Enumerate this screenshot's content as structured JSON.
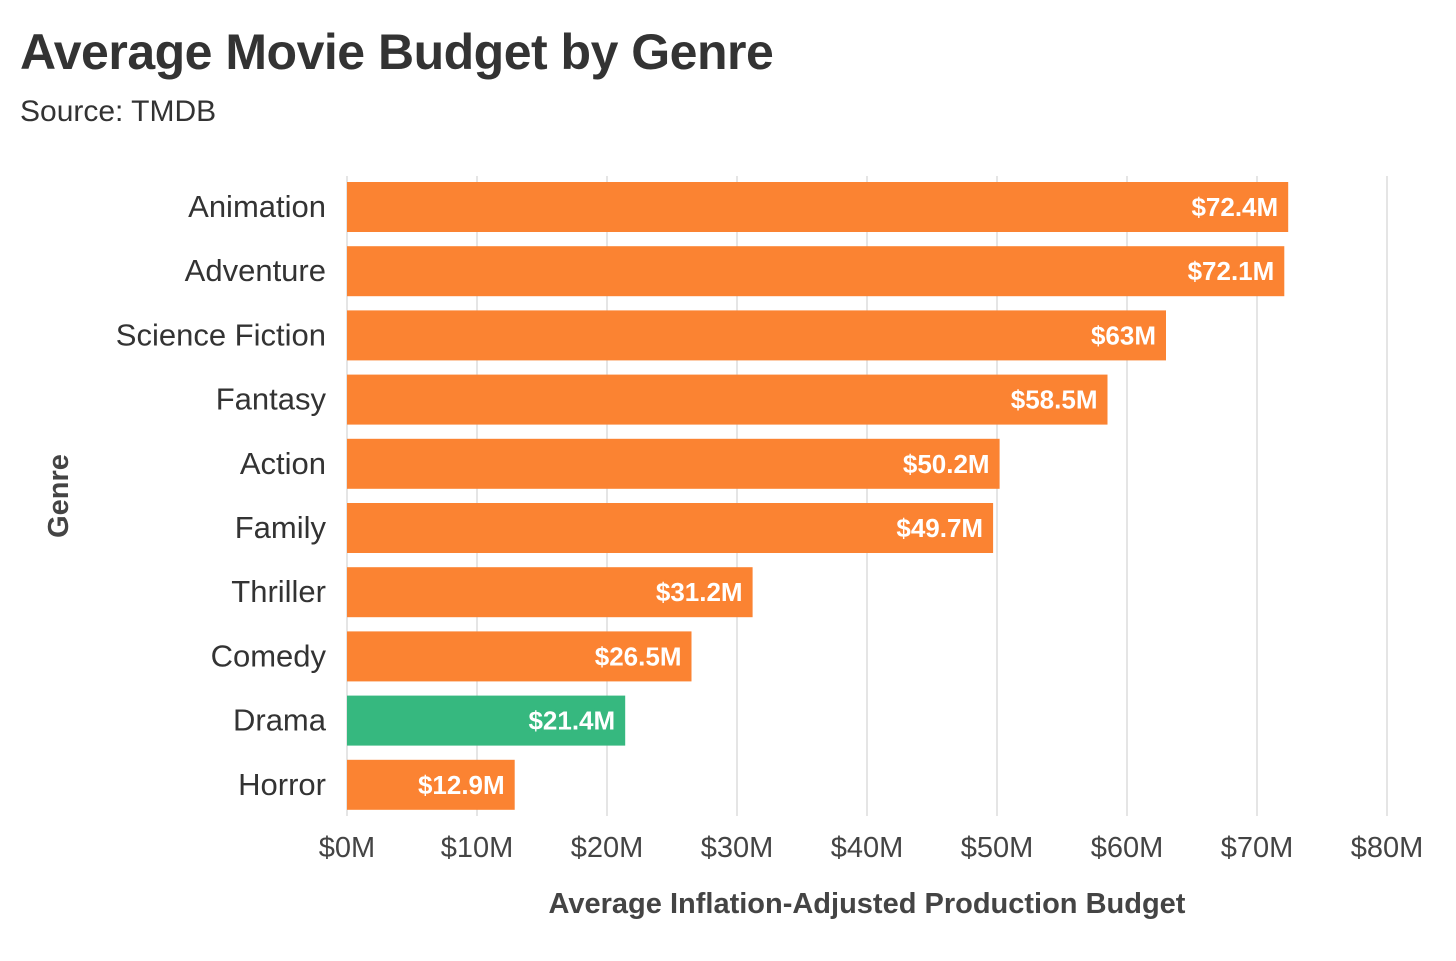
{
  "title": "Average Movie Budget by Genre",
  "subtitle": "Source: TMDB",
  "colors": {
    "bar": "#fb8332",
    "highlight": "#36b87f",
    "grid": "#e5e5e5",
    "text": "#333333",
    "label_text": "#ffffff"
  },
  "chart_data": {
    "type": "bar",
    "orientation": "horizontal",
    "xlabel": "Average Inflation-Adjusted Production Budget",
    "ylabel": "Genre",
    "xlim": [
      0,
      80
    ],
    "x_unit": "$M",
    "x_ticks": [
      0,
      10,
      20,
      30,
      40,
      50,
      60,
      70,
      80
    ],
    "x_tick_labels": [
      "$0M",
      "$10M",
      "$20M",
      "$30M",
      "$40M",
      "$50M",
      "$60M",
      "$70M",
      "$80M"
    ],
    "grid": "vertical",
    "legend": "none",
    "highlight_category": "Drama",
    "categories": [
      "Animation",
      "Adventure",
      "Science Fiction",
      "Fantasy",
      "Action",
      "Family",
      "Thriller",
      "Comedy",
      "Drama",
      "Horror"
    ],
    "values": [
      72.4,
      72.1,
      63,
      58.5,
      50.2,
      49.7,
      31.2,
      26.5,
      21.4,
      12.9
    ],
    "data_labels": [
      "$72.4M",
      "$72.1M",
      "$63M",
      "$58.5M",
      "$50.2M",
      "$49.7M",
      "$31.2M",
      "$26.5M",
      "$21.4M",
      "$12.9M"
    ]
  }
}
